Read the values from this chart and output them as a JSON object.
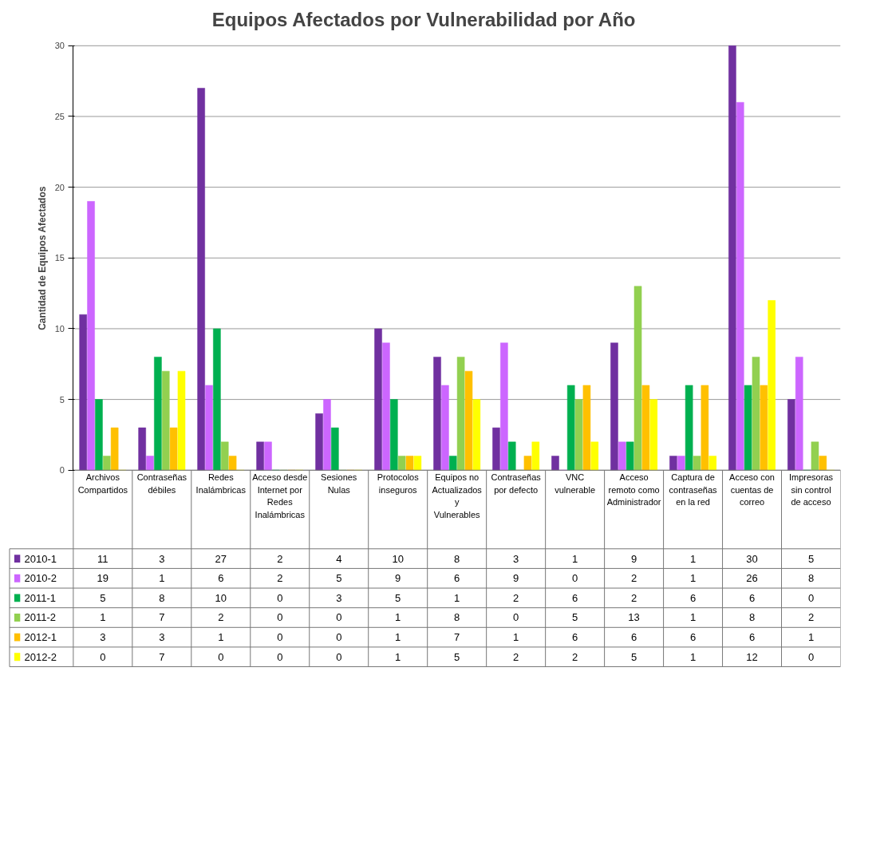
{
  "chart_data": {
    "type": "bar",
    "title": "Equipos Afectados por Vulnerabilidad por Año",
    "ylabel": "Cantidad de Equipos Afectados",
    "categories": [
      "Archivos Compartidos",
      "Contraseñas débiles",
      "Redes Inalámbricas",
      "Acceso desde Internet por Redes Inalámbricas",
      "Sesiones Nulas",
      "Protocolos inseguros",
      "Equipos no Actualizados y Vulnerables",
      "Contraseñas por defecto",
      "VNC vulnerable",
      "Acceso remoto como Administrador",
      "Captura de contraseñas en la red",
      "Acceso con cuentas de correo",
      "Impresoras sin control de acceso"
    ],
    "series": [
      {
        "name": "2010-1",
        "color": "#7030a0",
        "values": [
          11,
          3,
          27,
          2,
          4,
          10,
          8,
          3,
          1,
          9,
          1,
          30,
          5
        ]
      },
      {
        "name": "2010-2",
        "color": "#cc66ff",
        "values": [
          19,
          1,
          6,
          2,
          5,
          9,
          6,
          9,
          0,
          2,
          1,
          26,
          8
        ]
      },
      {
        "name": "2011-1",
        "color": "#00b050",
        "values": [
          5,
          8,
          10,
          0,
          3,
          5,
          1,
          2,
          6,
          2,
          6,
          6,
          0
        ]
      },
      {
        "name": "2011-2",
        "color": "#92d050",
        "values": [
          1,
          7,
          2,
          0,
          0,
          1,
          8,
          0,
          5,
          13,
          1,
          8,
          2
        ]
      },
      {
        "name": "2012-1",
        "color": "#ffc000",
        "values": [
          3,
          3,
          1,
          0,
          0,
          1,
          7,
          1,
          6,
          6,
          6,
          6,
          1
        ]
      },
      {
        "name": "2012-2",
        "color": "#ffff00",
        "values": [
          0,
          7,
          0,
          0,
          0,
          1,
          5,
          2,
          2,
          5,
          1,
          12,
          0
        ]
      }
    ],
    "ylim": [
      0,
      30
    ],
    "yticks": [
      0,
      5,
      10,
      15,
      20,
      25,
      30
    ],
    "grid": "y",
    "legend": "bottom",
    "data_labels": true
  }
}
